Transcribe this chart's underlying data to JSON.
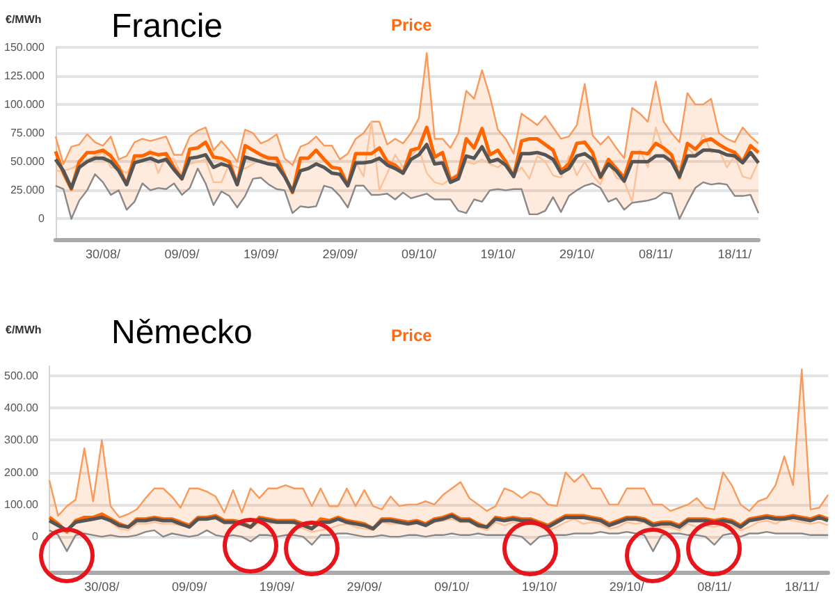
{
  "chart_data": [
    {
      "type": "line",
      "title": "Francie",
      "subtitle": "Price",
      "ylabel": "€/MWh",
      "grid": "y",
      "categories": [
        null,
        null,
        null,
        null,
        null,
        null,
        "30/08/",
        null,
        null,
        null,
        null,
        null,
        null,
        null,
        null,
        null,
        "09/09/",
        null,
        null,
        null,
        null,
        null,
        null,
        null,
        null,
        null,
        "19/09/",
        null,
        null,
        null,
        null,
        null,
        null,
        null,
        null,
        null,
        "29/09/",
        null,
        null,
        null,
        null,
        null,
        null,
        null,
        null,
        null,
        "09/10/",
        null,
        null,
        null,
        null,
        null,
        null,
        null,
        null,
        null,
        "19/10/",
        null,
        null,
        null,
        null,
        null,
        null,
        null,
        null,
        null,
        "29/10/",
        null,
        null,
        null,
        null,
        null,
        null,
        null,
        null,
        null,
        "08/11/",
        null,
        null,
        null,
        null,
        null,
        null,
        null,
        null,
        null,
        "18/11/",
        null,
        null,
        null
      ],
      "ylim": [
        -18,
        150
      ],
      "yticks": [
        0,
        {
          "value": 25,
          "label": "25.000"
        },
        {
          "value": 50,
          "label": "50.000"
        },
        {
          "value": 75,
          "label": "75.000"
        },
        {
          "value": 100,
          "label": "100.000"
        },
        {
          "value": 125,
          "label": "125.000"
        },
        {
          "value": 150,
          "label": "150.000"
        }
      ],
      "series": [
        {
          "color": "#fa9a5a",
          "values": [
            72,
            48,
            63,
            65,
            74,
            67,
            64,
            72,
            52,
            55,
            67,
            70,
            68,
            70,
            72,
            56,
            56,
            72,
            77,
            80,
            60,
            68,
            60,
            50,
            78,
            75,
            66,
            69,
            74,
            53,
            47,
            63,
            66,
            72,
            64,
            64,
            52,
            57,
            70,
            75,
            85,
            85,
            65,
            70,
            66,
            75,
            88,
            145,
            70,
            70,
            62,
            75,
            112,
            105,
            130,
            107,
            78,
            70,
            57,
            92,
            87,
            82,
            90,
            80,
            70,
            72,
            82,
            118,
            73,
            65,
            72,
            62,
            53,
            97,
            92,
            85,
            120,
            85,
            75,
            67,
            110,
            100,
            100,
            105,
            75,
            70,
            67,
            80,
            72,
            66
          ]
        },
        {
          "color": "#ff6600",
          "values": [
            59,
            40,
            26,
            50,
            58,
            58,
            60,
            55,
            45,
            30,
            55,
            55,
            58,
            56,
            57,
            45,
            35,
            61,
            62,
            67,
            54,
            53,
            50,
            30,
            64,
            60,
            56,
            53,
            53,
            38,
            23,
            53,
            53,
            60,
            52,
            45,
            44,
            29,
            57,
            57,
            57,
            62,
            50,
            47,
            40,
            60,
            62,
            80,
            54,
            58,
            34,
            38,
            70,
            62,
            79,
            56,
            60,
            50,
            37,
            68,
            70,
            70,
            65,
            60,
            42,
            48,
            66,
            67,
            58,
            36,
            52,
            44,
            36,
            58,
            58,
            57,
            66,
            62,
            56,
            36,
            66,
            61,
            68,
            70,
            65,
            61,
            58,
            50,
            64,
            58
          ],
          "lower": [
            29,
            26,
            0,
            16,
            25,
            39,
            32,
            21,
            25,
            8,
            15,
            31,
            25,
            27,
            26,
            31,
            21,
            27,
            44,
            31,
            12,
            24,
            20,
            10,
            20,
            35,
            36,
            30,
            26,
            25,
            5,
            11,
            10,
            11,
            29,
            27,
            20,
            10,
            29,
            29,
            21,
            21,
            22,
            17,
            23,
            18,
            20,
            22,
            17,
            17,
            17,
            7,
            5,
            17,
            15,
            25,
            26,
            25,
            26,
            26,
            4,
            4,
            7,
            19,
            6,
            20,
            25,
            29,
            31,
            27,
            15,
            18,
            8,
            14,
            15,
            16,
            18,
            23,
            22,
            0,
            14,
            27,
            32,
            30,
            31,
            30,
            20,
            20,
            21,
            5
          ],
          "upper": [
            72,
            48,
            63,
            65,
            74,
            67,
            64,
            72,
            52,
            55,
            67,
            70,
            68,
            70,
            72,
            56,
            56,
            72,
            77,
            80,
            60,
            68,
            60,
            50,
            78,
            75,
            66,
            69,
            74,
            53,
            47,
            63,
            66,
            72,
            64,
            64,
            52,
            57,
            70,
            75,
            85,
            85,
            65,
            70,
            66,
            75,
            88,
            145,
            70,
            70,
            62,
            75,
            112,
            105,
            130,
            107,
            78,
            70,
            57,
            92,
            87,
            82,
            90,
            80,
            70,
            72,
            82,
            118,
            73,
            65,
            72,
            62,
            53,
            97,
            92,
            85,
            120,
            85,
            75,
            67,
            110,
            100,
            100,
            105,
            75,
            70,
            67,
            80,
            72,
            66
          ]
        },
        {
          "color": "#fbc29a",
          "values": [
            42,
            42,
            44,
            48,
            52,
            55,
            58,
            45,
            44,
            40,
            50,
            55,
            60,
            40,
            55,
            52,
            38,
            48,
            50,
            52,
            32,
            32,
            48,
            45,
            44,
            48,
            52,
            55,
            50,
            38,
            24,
            43,
            45,
            48,
            45,
            40,
            38,
            30,
            50,
            37,
            85,
            25,
            40,
            56,
            45,
            55,
            62,
            40,
            32,
            30,
            35,
            40,
            50,
            48,
            52,
            48,
            45,
            50,
            38,
            45,
            35,
            55,
            50,
            38,
            36,
            55,
            38,
            50,
            38,
            30,
            50,
            36,
            33,
            15,
            60,
            45,
            80,
            60,
            50,
            45,
            62,
            55,
            75,
            58,
            60,
            45,
            55,
            37,
            35,
            50
          ]
        },
        {
          "color": "#555555",
          "values": [
            52,
            42,
            27,
            45,
            50,
            53,
            53,
            50,
            42,
            30,
            49,
            51,
            53,
            50,
            52,
            43,
            35,
            53,
            54,
            56,
            45,
            48,
            46,
            30,
            54,
            52,
            50,
            48,
            47,
            37,
            24,
            42,
            44,
            48,
            45,
            40,
            39,
            29,
            49,
            49,
            50,
            53,
            47,
            44,
            40,
            52,
            56,
            65,
            48,
            49,
            32,
            35,
            55,
            53,
            63,
            50,
            52,
            47,
            37,
            57,
            57,
            58,
            56,
            52,
            40,
            44,
            55,
            57,
            52,
            37,
            48,
            42,
            33,
            50,
            50,
            50,
            55,
            55,
            50,
            37,
            55,
            55,
            60,
            60,
            59,
            56,
            55,
            49,
            58,
            49
          ]
        },
        {
          "color": "#888888",
          "values": [
            29,
            26,
            0,
            16,
            25,
            39,
            32,
            21,
            25,
            8,
            15,
            31,
            25,
            27,
            26,
            31,
            21,
            27,
            44,
            31,
            12,
            24,
            20,
            10,
            20,
            35,
            36,
            30,
            26,
            25,
            5,
            11,
            10,
            11,
            29,
            27,
            20,
            10,
            29,
            29,
            21,
            21,
            22,
            17,
            23,
            18,
            20,
            22,
            17,
            17,
            17,
            7,
            5,
            17,
            15,
            25,
            26,
            25,
            26,
            26,
            4,
            4,
            7,
            19,
            6,
            20,
            25,
            29,
            31,
            27,
            15,
            18,
            8,
            14,
            15,
            16,
            18,
            23,
            22,
            0,
            14,
            27,
            32,
            30,
            31,
            30,
            20,
            20,
            21,
            5
          ]
        }
      ]
    },
    {
      "type": "line",
      "title": "Německo",
      "subtitle": "Price",
      "ylabel": "€/MWh",
      "grid": "y",
      "categories": [
        null,
        null,
        null,
        null,
        null,
        null,
        "30/08/",
        null,
        null,
        null,
        null,
        null,
        null,
        null,
        null,
        null,
        "09/09/",
        null,
        null,
        null,
        null,
        null,
        null,
        null,
        null,
        null,
        "19/09/",
        null,
        null,
        null,
        null,
        null,
        null,
        null,
        null,
        null,
        "29/09/",
        null,
        null,
        null,
        null,
        null,
        null,
        null,
        null,
        null,
        "09/10/",
        null,
        null,
        null,
        null,
        null,
        null,
        null,
        null,
        null,
        "19/10/",
        null,
        null,
        null,
        null,
        null,
        null,
        null,
        null,
        null,
        "29/10/",
        null,
        null,
        null,
        null,
        null,
        null,
        null,
        null,
        null,
        "08/11/",
        null,
        null,
        null,
        null,
        null,
        null,
        null,
        null,
        null,
        "18/11/",
        null,
        null,
        null
      ],
      "ylim": [
        -110,
        530
      ],
      "yticks": [
        0,
        {
          "value": 100,
          "label": "100.00"
        },
        {
          "value": 200,
          "label": "200.00"
        },
        {
          "value": 300,
          "label": "300.00"
        },
        {
          "value": 400,
          "label": "400.00"
        },
        {
          "value": 500,
          "label": "500.00"
        }
      ],
      "series": [
        {
          "color": "#fa9a5a",
          "values": [
            175,
            65,
            95,
            115,
            275,
            110,
            300,
            95,
            60,
            70,
            85,
            120,
            150,
            150,
            125,
            90,
            150,
            150,
            140,
            125,
            75,
            145,
            75,
            150,
            120,
            150,
            150,
            160,
            150,
            150,
            95,
            150,
            95,
            95,
            150,
            95,
            145,
            95,
            85,
            125,
            95,
            100,
            100,
            110,
            100,
            130,
            150,
            170,
            120,
            100,
            80,
            95,
            150,
            140,
            120,
            140,
            130,
            100,
            95,
            200,
            170,
            195,
            150,
            150,
            100,
            100,
            150,
            150,
            150,
            100,
            100,
            80,
            90,
            100,
            120,
            90,
            85,
            200,
            160,
            100,
            80,
            110,
            120,
            160,
            250,
            160,
            520,
            85,
            90,
            130
          ]
        },
        {
          "color": "#ff6600",
          "values": [
            60,
            40,
            15,
            50,
            60,
            60,
            70,
            55,
            40,
            30,
            55,
            55,
            60,
            55,
            55,
            45,
            35,
            60,
            60,
            65,
            50,
            50,
            45,
            30,
            60,
            55,
            50,
            50,
            50,
            40,
            25,
            55,
            50,
            60,
            50,
            45,
            40,
            25,
            55,
            55,
            50,
            45,
            50,
            40,
            55,
            60,
            70,
            55,
            55,
            40,
            30,
            60,
            55,
            60,
            55,
            55,
            45,
            35,
            50,
            65,
            65,
            65,
            60,
            55,
            40,
            50,
            60,
            60,
            55,
            40,
            45,
            45,
            35,
            55,
            55,
            55,
            50,
            55,
            50,
            35,
            55,
            60,
            65,
            60,
            60,
            65,
            60,
            55,
            65,
            55
          ],
          "lower": [
            20,
            5,
            -45,
            5,
            10,
            5,
            0,
            5,
            0,
            0,
            5,
            15,
            20,
            0,
            10,
            5,
            0,
            5,
            20,
            5,
            0,
            5,
            0,
            -15,
            5,
            5,
            0,
            5,
            5,
            0,
            -25,
            5,
            5,
            10,
            10,
            5,
            0,
            0,
            5,
            0,
            0,
            5,
            5,
            0,
            5,
            5,
            10,
            5,
            5,
            10,
            5,
            5,
            5,
            5,
            0,
            -25,
            0,
            5,
            5,
            5,
            10,
            10,
            10,
            15,
            10,
            10,
            15,
            10,
            5,
            -45,
            5,
            10,
            10,
            5,
            5,
            0,
            -25,
            5,
            10,
            0,
            10,
            10,
            15,
            10,
            10,
            10,
            10,
            5,
            5,
            5
          ],
          "upper": [
            175,
            65,
            95,
            115,
            275,
            110,
            300,
            95,
            60,
            70,
            85,
            120,
            150,
            150,
            125,
            90,
            150,
            150,
            140,
            125,
            75,
            145,
            75,
            150,
            120,
            150,
            150,
            160,
            150,
            150,
            95,
            150,
            95,
            95,
            150,
            95,
            145,
            95,
            85,
            125,
            95,
            100,
            100,
            110,
            100,
            130,
            150,
            170,
            120,
            100,
            80,
            95,
            150,
            140,
            120,
            140,
            130,
            100,
            95,
            200,
            170,
            195,
            150,
            150,
            100,
            100,
            150,
            150,
            150,
            100,
            100,
            80,
            90,
            100,
            120,
            90,
            85,
            200,
            160,
            100,
            80,
            110,
            120,
            160,
            250,
            160,
            520,
            85,
            90,
            130
          ]
        },
        {
          "color": "#fbc29a",
          "values": [
            50,
            35,
            20,
            40,
            55,
            55,
            60,
            45,
            25,
            20,
            40,
            40,
            45,
            40,
            40,
            35,
            30,
            50,
            55,
            55,
            40,
            40,
            35,
            25,
            45,
            40,
            45,
            45,
            40,
            25,
            15,
            20,
            25,
            35,
            40,
            30,
            25,
            20,
            45,
            40,
            40,
            35,
            40,
            35,
            45,
            50,
            55,
            45,
            45,
            30,
            20,
            45,
            35,
            45,
            40,
            40,
            35,
            20,
            30,
            45,
            55,
            40,
            45,
            40,
            25,
            30,
            45,
            40,
            45,
            25,
            30,
            30,
            20,
            40,
            30,
            35,
            30,
            40,
            35,
            20,
            30,
            45,
            50,
            40,
            55,
            50,
            45,
            40,
            45,
            35
          ]
        },
        {
          "color": "#555555",
          "values": [
            50,
            35,
            20,
            45,
            50,
            55,
            60,
            50,
            35,
            30,
            50,
            50,
            55,
            50,
            50,
            40,
            30,
            55,
            55,
            60,
            45,
            45,
            40,
            30,
            55,
            50,
            45,
            45,
            45,
            35,
            25,
            45,
            45,
            55,
            45,
            40,
            35,
            25,
            50,
            50,
            45,
            40,
            45,
            35,
            50,
            55,
            65,
            50,
            50,
            35,
            30,
            55,
            50,
            55,
            50,
            50,
            40,
            30,
            45,
            60,
            60,
            60,
            55,
            50,
            35,
            45,
            55,
            55,
            50,
            35,
            40,
            40,
            30,
            50,
            50,
            50,
            45,
            50,
            45,
            30,
            50,
            55,
            60,
            55,
            55,
            60,
            55,
            50,
            60,
            50
          ]
        },
        {
          "color": "#888888",
          "values": [
            20,
            5,
            -45,
            5,
            10,
            5,
            0,
            5,
            0,
            0,
            5,
            15,
            20,
            0,
            10,
            5,
            0,
            5,
            20,
            5,
            0,
            5,
            0,
            -15,
            5,
            5,
            0,
            5,
            5,
            0,
            -25,
            5,
            5,
            10,
            10,
            5,
            0,
            0,
            5,
            0,
            0,
            5,
            5,
            0,
            5,
            5,
            10,
            5,
            5,
            10,
            5,
            5,
            5,
            5,
            0,
            -25,
            0,
            5,
            5,
            5,
            10,
            10,
            10,
            15,
            10,
            10,
            15,
            10,
            5,
            -45,
            5,
            10,
            10,
            5,
            5,
            0,
            -25,
            5,
            10,
            0,
            10,
            10,
            15,
            10,
            10,
            10,
            10,
            5,
            5,
            5
          ]
        }
      ]
    }
  ]
}
